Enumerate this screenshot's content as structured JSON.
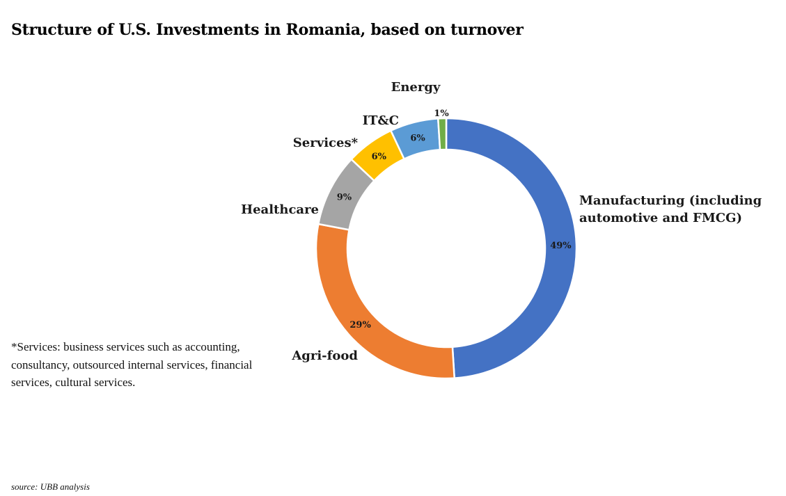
{
  "title": "Structure of U.S. Investments in Romania, based on turnover",
  "chart_data": {
    "type": "pie",
    "donut": true,
    "slices": [
      {
        "label": "Manufacturing (including automotive and FMCG)",
        "label_lines": [
          "Manufacturing (including",
          "automotive and FMCG)"
        ],
        "value": 49,
        "value_label": "49%",
        "color": "#4472C4"
      },
      {
        "label": "Agri-food",
        "label_lines": [
          "Agri-food"
        ],
        "value": 29,
        "value_label": "29%",
        "color": "#ED7D31"
      },
      {
        "label": "Healthcare",
        "label_lines": [
          "Healthcare"
        ],
        "value": 9,
        "value_label": "9%",
        "color": "#A5A5A5"
      },
      {
        "label": "Services*",
        "label_lines": [
          "Services*"
        ],
        "value": 6,
        "value_label": "6%",
        "color": "#FFC000"
      },
      {
        "label": "IT&C",
        "label_lines": [
          "IT&C"
        ],
        "value": 6,
        "value_label": "6%",
        "color": "#5B9BD5"
      },
      {
        "label": "Energy",
        "label_lines": [
          "Energy"
        ],
        "value": 1,
        "value_label": "1%",
        "color": "#70AD47"
      }
    ]
  },
  "footnote": "*Services: business services such as accounting, consultancy, outsourced internal services, financial services, cultural services.",
  "source": "source: UBB analysis"
}
